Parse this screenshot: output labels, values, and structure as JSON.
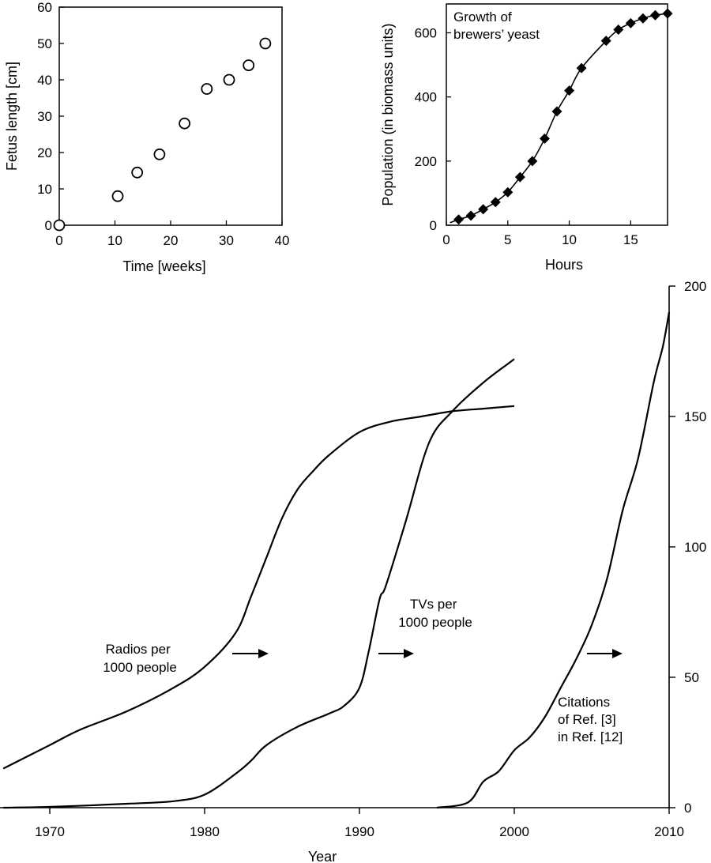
{
  "chart_data": [
    {
      "id": "fetus",
      "type": "scatter",
      "xlabel": "Time [weeks]",
      "ylabel": "Fetus length [cm]",
      "xlim": [
        0,
        40
      ],
      "ylim": [
        0,
        60
      ],
      "xticks": [
        "0",
        "10",
        "20",
        "30",
        "40"
      ],
      "yticks": [
        "0",
        "10",
        "20",
        "30",
        "40",
        "50",
        "60"
      ],
      "x": [
        0,
        10.5,
        14,
        18,
        22.5,
        26.5,
        30.5,
        34,
        37
      ],
      "y": [
        0,
        8,
        14.5,
        19.5,
        28,
        37.5,
        40,
        44,
        50
      ],
      "marker": "open-circle",
      "grid": false
    },
    {
      "id": "yeast",
      "type": "line",
      "title": "Growth of brewers’ yeast",
      "title_lines": [
        "Growth of",
        "brewers’ yeast"
      ],
      "xlabel": "Hours",
      "ylabel": "Population (in biomass units)",
      "xlim": [
        0,
        18
      ],
      "ylim": [
        0,
        690
      ],
      "xticks": [
        "0",
        "5",
        "10",
        "15"
      ],
      "yticks": [
        "0",
        "200",
        "400",
        "600"
      ],
      "x": [
        1,
        2,
        3,
        4,
        5,
        6,
        7,
        8,
        9,
        10,
        11,
        13,
        14,
        15,
        16,
        17,
        18
      ],
      "y": [
        18,
        30,
        50,
        72,
        103,
        150,
        200,
        270,
        355,
        420,
        490,
        575,
        610,
        630,
        645,
        655,
        660
      ],
      "marker": "filled-diamond",
      "curve": "logistic fit",
      "grid": false
    },
    {
      "id": "diffusion",
      "type": "line",
      "xlabel": "Year",
      "ylabel": "",
      "xlim": [
        1967,
        2010
      ],
      "ylim": [
        0,
        200
      ],
      "yaxis_position": "right",
      "xticks": [
        "1970",
        "1980",
        "1990",
        "2000",
        "2010"
      ],
      "yticks": [
        "0",
        "50",
        "100",
        "150",
        "200"
      ],
      "series": [
        {
          "id": "radios",
          "label_lines": [
            "Radios per",
            "1000 people"
          ],
          "x": [
            1967,
            1970,
            1972,
            1975,
            1978,
            1980,
            1982,
            1983,
            1984,
            1985,
            1986,
            1987,
            1988,
            1990,
            1992,
            1994,
            1996,
            1998,
            2000
          ],
          "y": [
            15,
            24,
            30,
            37,
            46,
            54,
            67,
            81,
            96,
            111,
            122,
            129,
            135,
            144,
            148,
            150,
            152,
            153,
            154
          ]
        },
        {
          "id": "tvs",
          "label_lines": [
            "TVs per",
            "1000 people"
          ],
          "x": [
            1967,
            1970,
            1975,
            1978,
            1980,
            1982,
            1983,
            1984,
            1986,
            1988,
            1989,
            1990,
            1990.6,
            1991.3,
            1991.7,
            1993,
            1994.5,
            1996,
            1998,
            2000
          ],
          "y": [
            0,
            0.3,
            1.5,
            2.5,
            5,
            13,
            18,
            24,
            31,
            36,
            39,
            46,
            60,
            80,
            85,
            110,
            140,
            152,
            163,
            172
          ]
        },
        {
          "id": "citations",
          "label_lines": [
            "Citations",
            "of Ref. [3]",
            "in Ref. [12]"
          ],
          "x": [
            1995,
            1997,
            1998,
            1999,
            2000,
            2001,
            2002,
            2003,
            2004,
            2005,
            2006,
            2007,
            2008,
            2009,
            2009.6,
            2010
          ],
          "y": [
            0,
            2,
            10,
            14,
            22,
            27,
            35,
            46,
            57,
            70,
            88,
            114,
            134,
            163,
            177,
            190
          ]
        }
      ],
      "annotations": [
        "arrow",
        "arrow",
        "arrow"
      ],
      "grid": false
    }
  ]
}
